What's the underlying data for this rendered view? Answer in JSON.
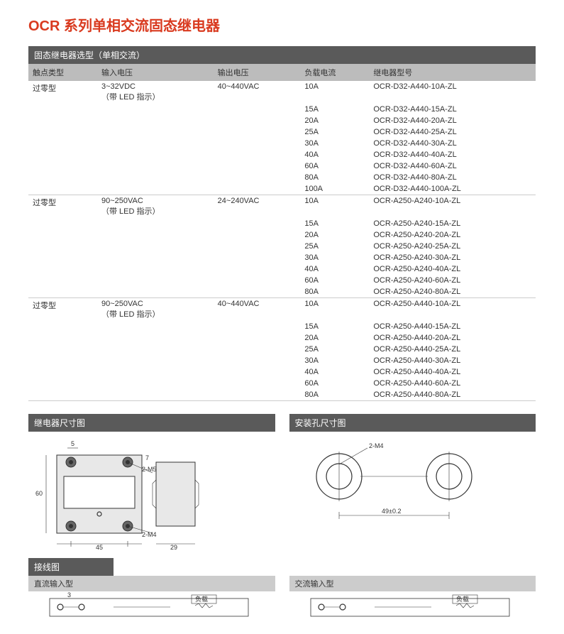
{
  "title": "OCR 系列单相交流固态继电器",
  "spec_table": {
    "header_bar": "固态继电器选型（单相交流）",
    "columns": [
      "触点类型",
      "输入电压",
      "输出电压",
      "负载电流",
      "继电器型号"
    ],
    "groups": [
      {
        "contact_type": "过零型",
        "input_voltage": "3~32VDC",
        "input_note": "（带 LED 指示）",
        "output_voltage": "40~440VAC",
        "rows": [
          {
            "current": "10A",
            "model": "OCR-D32-A440-10A-ZL"
          },
          {
            "current": "15A",
            "model": "OCR-D32-A440-15A-ZL"
          },
          {
            "current": "20A",
            "model": "OCR-D32-A440-20A-ZL"
          },
          {
            "current": "25A",
            "model": "OCR-D32-A440-25A-ZL"
          },
          {
            "current": "30A",
            "model": "OCR-D32-A440-30A-ZL"
          },
          {
            "current": "40A",
            "model": "OCR-D32-A440-40A-ZL"
          },
          {
            "current": "60A",
            "model": "OCR-D32-A440-60A-ZL"
          },
          {
            "current": "80A",
            "model": "OCR-D32-A440-80A-ZL"
          },
          {
            "current": "100A",
            "model": "OCR-D32-A440-100A-ZL"
          }
        ]
      },
      {
        "contact_type": "过零型",
        "input_voltage": "90~250VAC",
        "input_note": "（带 LED 指示）",
        "output_voltage": "24~240VAC",
        "rows": [
          {
            "current": "10A",
            "model": "OCR-A250-A240-10A-ZL"
          },
          {
            "current": "15A",
            "model": "OCR-A250-A240-15A-ZL"
          },
          {
            "current": "20A",
            "model": "OCR-A250-A240-20A-ZL"
          },
          {
            "current": "25A",
            "model": "OCR-A250-A240-25A-ZL"
          },
          {
            "current": "30A",
            "model": "OCR-A250-A240-30A-ZL"
          },
          {
            "current": "40A",
            "model": "OCR-A250-A240-40A-ZL"
          },
          {
            "current": "60A",
            "model": "OCR-A250-A240-60A-ZL"
          },
          {
            "current": "80A",
            "model": "OCR-A250-A240-80A-ZL"
          }
        ]
      },
      {
        "contact_type": "过零型",
        "input_voltage": "90~250VAC",
        "input_note": "（带 LED 指示）",
        "output_voltage": "40~440VAC",
        "rows": [
          {
            "current": "10A",
            "model": "OCR-A250-A440-10A-ZL"
          },
          {
            "current": "15A",
            "model": "OCR-A250-A440-15A-ZL"
          },
          {
            "current": "20A",
            "model": "OCR-A250-A440-20A-ZL"
          },
          {
            "current": "25A",
            "model": "OCR-A250-A440-25A-ZL"
          },
          {
            "current": "30A",
            "model": "OCR-A250-A440-30A-ZL"
          },
          {
            "current": "40A",
            "model": "OCR-A250-A440-40A-ZL"
          },
          {
            "current": "60A",
            "model": "OCR-A250-A440-60A-ZL"
          },
          {
            "current": "80A",
            "model": "OCR-A250-A440-80A-ZL"
          }
        ]
      }
    ]
  },
  "dimension_diagram": {
    "title": "继电器尺寸图",
    "labels": {
      "top_5": "5",
      "m5": "2-M5",
      "m4": "2-M4",
      "w45": "45",
      "w29": "29",
      "h60": "60",
      "h7": "7"
    }
  },
  "mounting_diagram": {
    "title": "安装孔尺寸图",
    "labels": {
      "m4": "2-M4",
      "spacing": "49±0.2"
    }
  },
  "wiring": {
    "title": "接线图",
    "dc_label": "直流输入型",
    "ac_label": "交流输入型",
    "load": "负载"
  }
}
